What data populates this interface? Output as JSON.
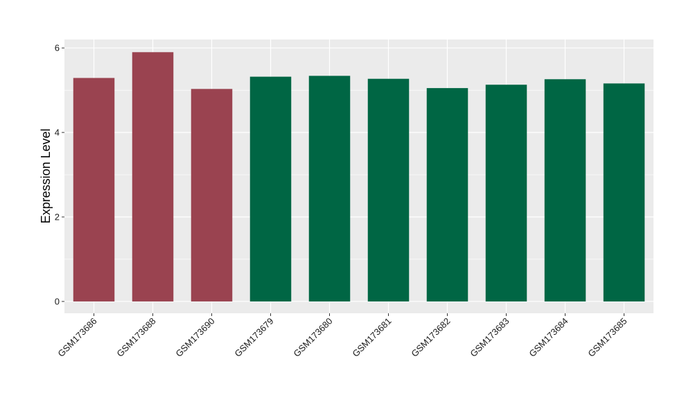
{
  "chart_data": {
    "type": "bar",
    "title": "",
    "xlabel": "",
    "ylabel": "Expression Level",
    "ylim": [
      -0.28,
      6.2
    ],
    "yticks": [
      0,
      2,
      4,
      6
    ],
    "ytick_labels": [
      "0",
      "2",
      "4",
      "6"
    ],
    "grid": true,
    "categories": [
      "GSM173686",
      "GSM173688",
      "GSM173690",
      "GSM173679",
      "GSM173680",
      "GSM173681",
      "GSM173682",
      "GSM173683",
      "GSM173684",
      "GSM173685"
    ],
    "values": [
      5.29,
      5.9,
      5.03,
      5.32,
      5.34,
      5.27,
      5.05,
      5.13,
      5.26,
      5.16
    ],
    "bar_colors": [
      "#9a4350",
      "#9a4350",
      "#9a4350",
      "#006644",
      "#006644",
      "#006644",
      "#006644",
      "#006644",
      "#006644",
      "#006644"
    ],
    "panel_background": "#ebebeb",
    "grid_color": "#ffffff"
  }
}
